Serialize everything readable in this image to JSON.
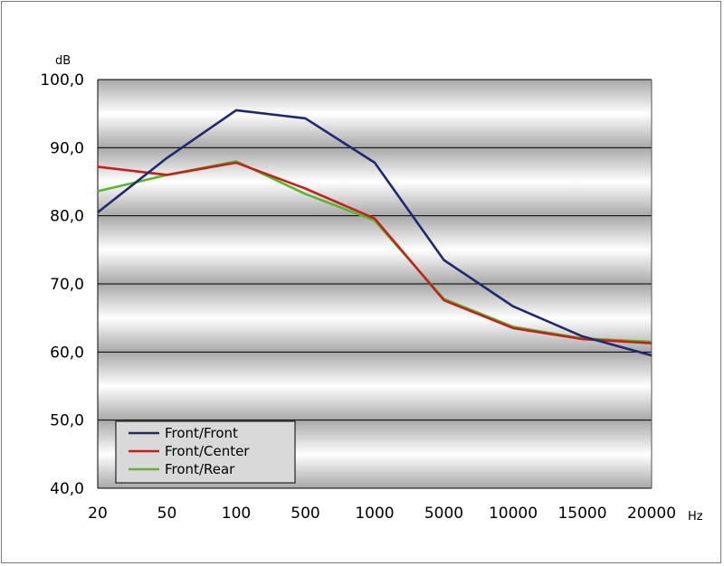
{
  "chart_data": {
    "type": "line",
    "title": "",
    "xlabel": "Hz",
    "ylabel": "dB",
    "categories": [
      "20",
      "50",
      "100",
      "500",
      "1000",
      "5000",
      "10000",
      "15000",
      "20000"
    ],
    "ylim": [
      40,
      100
    ],
    "yticks": [
      "40,0",
      "50,0",
      "60,0",
      "70,0",
      "80,0",
      "90,0",
      "100,0"
    ],
    "grid": true,
    "legend_position": "bottom-left",
    "series": [
      {
        "name": "Front/Front",
        "color": "#1f2a6e",
        "values": [
          80.5,
          88.5,
          95.5,
          94.3,
          87.8,
          73.5,
          66.7,
          62.3,
          59.5
        ]
      },
      {
        "name": "Front/Center",
        "color": "#c4201c",
        "values": [
          87.2,
          86.0,
          87.8,
          84.0,
          79.6,
          67.6,
          63.5,
          61.9,
          61.3
        ]
      },
      {
        "name": "Front/Rear",
        "color": "#56b82c",
        "values": [
          83.6,
          86.0,
          88.0,
          83.2,
          79.3,
          67.8,
          63.7,
          62.0,
          61.5
        ]
      }
    ]
  }
}
